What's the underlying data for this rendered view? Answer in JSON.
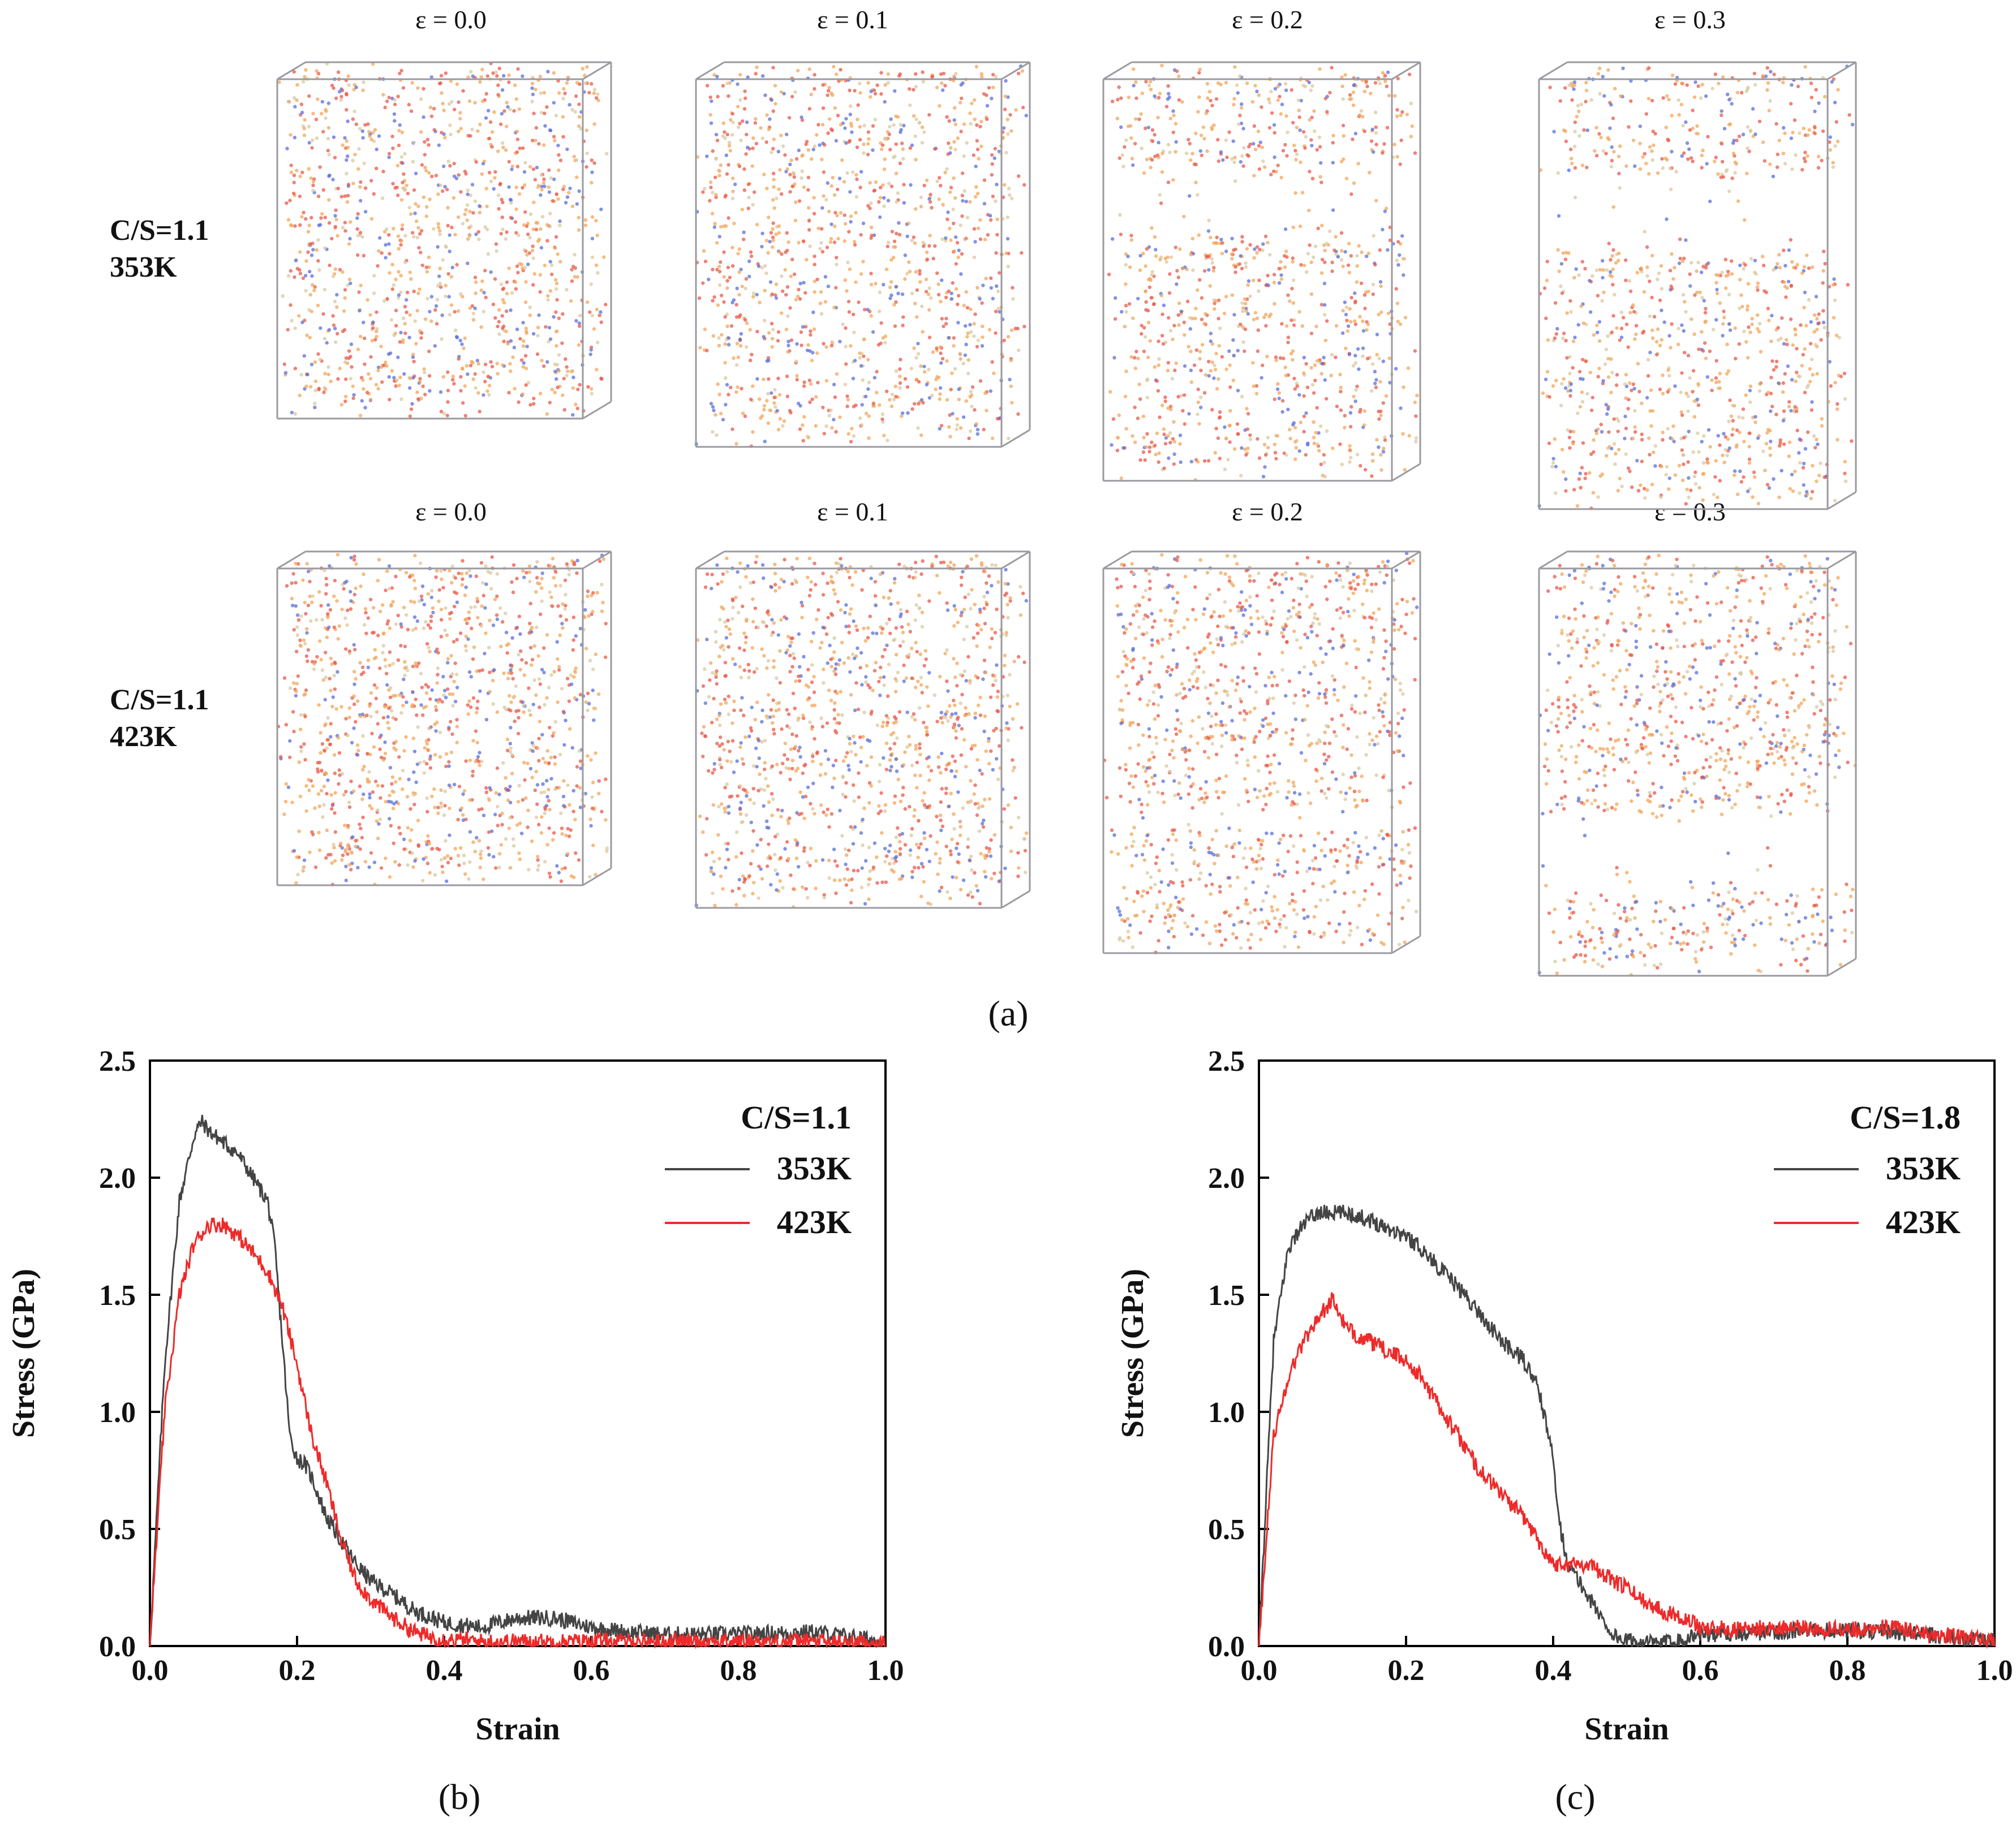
{
  "panel_a": {
    "label": "(a)",
    "rows": [
      {
        "line1": "C/S=1.1",
        "line2": "353K"
      },
      {
        "line1": "C/S=1.1",
        "line2": "423K"
      }
    ],
    "strains": [
      "ε = 0.0",
      "ε = 0.1",
      "ε = 0.2",
      "ε = 0.3"
    ],
    "colors": {
      "calcium": "#f2a65a",
      "oxygen": "#e8584a",
      "silicon": "#d9c8a0",
      "hydrogen": "#5a6fd8",
      "frame": "#9a9aa0"
    }
  },
  "panel_b": {
    "label": "(b)"
  },
  "panel_c": {
    "label": "(c)"
  },
  "chart_data": [
    {
      "type": "line",
      "title": "",
      "annotation": "C/S=1.1",
      "xlabel": "Strain",
      "ylabel": "Stress (GPa)",
      "xlim": [
        0.0,
        1.0
      ],
      "ylim": [
        0.0,
        2.5
      ],
      "xticks": [
        "0.0",
        "0.2",
        "0.4",
        "0.6",
        "0.8",
        "1.0"
      ],
      "yticks": [
        "0.0",
        "0.5",
        "1.0",
        "1.5",
        "2.0",
        "2.5"
      ],
      "legend": "top-right",
      "series": [
        {
          "name": "353K",
          "color": "#444444",
          "x": [
            0.0,
            0.02,
            0.04,
            0.06,
            0.07,
            0.08,
            0.1,
            0.12,
            0.14,
            0.16,
            0.17,
            0.18,
            0.19,
            0.2,
            0.21,
            0.22,
            0.24,
            0.26,
            0.28,
            0.3,
            0.33,
            0.36,
            0.4,
            0.45,
            0.5,
            0.55,
            0.6,
            0.65,
            0.7,
            0.8,
            0.9,
            1.0
          ],
          "y": [
            0.0,
            1.2,
            1.9,
            2.18,
            2.24,
            2.2,
            2.15,
            2.1,
            2.0,
            1.9,
            1.7,
            1.3,
            0.9,
            0.8,
            0.78,
            0.72,
            0.55,
            0.45,
            0.35,
            0.28,
            0.22,
            0.15,
            0.1,
            0.08,
            0.12,
            0.12,
            0.08,
            0.06,
            0.05,
            0.05,
            0.06,
            0.02
          ]
        },
        {
          "name": "423K",
          "color": "#ee2a2a",
          "x": [
            0.0,
            0.02,
            0.04,
            0.06,
            0.08,
            0.1,
            0.12,
            0.14,
            0.16,
            0.18,
            0.2,
            0.22,
            0.24,
            0.26,
            0.28,
            0.3,
            0.33,
            0.36,
            0.38,
            0.4,
            0.45,
            0.5,
            0.6,
            0.7,
            0.8,
            0.9,
            1.0
          ],
          "y": [
            0.0,
            1.0,
            1.5,
            1.72,
            1.8,
            1.8,
            1.75,
            1.68,
            1.6,
            1.45,
            1.2,
            0.9,
            0.7,
            0.45,
            0.28,
            0.2,
            0.12,
            0.06,
            0.04,
            0.03,
            0.02,
            0.02,
            0.02,
            0.02,
            0.02,
            0.02,
            0.01
          ]
        }
      ]
    },
    {
      "type": "line",
      "title": "",
      "annotation": "C/S=1.8",
      "xlabel": "Strain",
      "ylabel": "Stress (GPa)",
      "xlim": [
        0.0,
        1.0
      ],
      "ylim": [
        0.0,
        2.5
      ],
      "xticks": [
        "0.0",
        "0.2",
        "0.4",
        "0.6",
        "0.8",
        "1.0"
      ],
      "yticks": [
        "0.0",
        "0.5",
        "1.0",
        "1.5",
        "2.0",
        "2.5"
      ],
      "legend": "top-right",
      "series": [
        {
          "name": "353K",
          "color": "#444444",
          "x": [
            0.0,
            0.02,
            0.04,
            0.06,
            0.08,
            0.1,
            0.12,
            0.15,
            0.18,
            0.2,
            0.22,
            0.25,
            0.28,
            0.3,
            0.33,
            0.36,
            0.38,
            0.4,
            0.41,
            0.42,
            0.44,
            0.46,
            0.48,
            0.5,
            0.55,
            0.6,
            0.7,
            0.8,
            0.9,
            1.0
          ],
          "y": [
            0.0,
            1.3,
            1.7,
            1.8,
            1.85,
            1.85,
            1.85,
            1.82,
            1.78,
            1.75,
            1.7,
            1.6,
            1.5,
            1.42,
            1.3,
            1.22,
            1.1,
            0.8,
            0.5,
            0.35,
            0.25,
            0.15,
            0.05,
            0.02,
            0.01,
            0.05,
            0.06,
            0.07,
            0.05,
            0.02
          ]
        },
        {
          "name": "423K",
          "color": "#ee2a2a",
          "x": [
            0.0,
            0.02,
            0.04,
            0.06,
            0.08,
            0.1,
            0.12,
            0.15,
            0.18,
            0.2,
            0.22,
            0.25,
            0.28,
            0.3,
            0.33,
            0.36,
            0.38,
            0.4,
            0.42,
            0.45,
            0.48,
            0.5,
            0.52,
            0.55,
            0.58,
            0.6,
            0.65,
            0.7,
            0.8,
            0.85,
            0.9,
            1.0
          ],
          "y": [
            0.0,
            0.9,
            1.15,
            1.3,
            1.4,
            1.48,
            1.35,
            1.3,
            1.25,
            1.22,
            1.15,
            1.0,
            0.85,
            0.75,
            0.65,
            0.55,
            0.45,
            0.35,
            0.35,
            0.35,
            0.28,
            0.25,
            0.2,
            0.15,
            0.12,
            0.08,
            0.07,
            0.08,
            0.07,
            0.08,
            0.06,
            0.02
          ]
        }
      ]
    }
  ]
}
